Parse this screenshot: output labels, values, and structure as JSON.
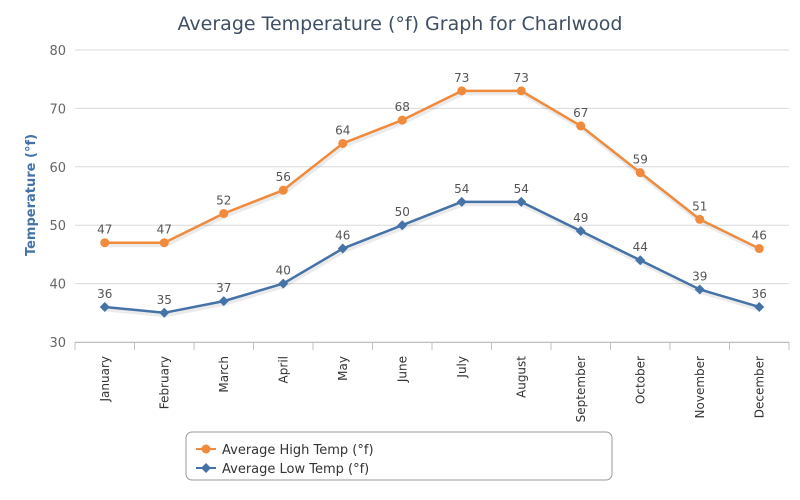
{
  "chart_data": {
    "type": "line",
    "title": "Average Temperature (°f) Graph for Charlwood",
    "xlabel": "",
    "ylabel": "Temperature (°f)",
    "ylim": [
      30,
      80
    ],
    "yticks": [
      30,
      40,
      50,
      60,
      70,
      80
    ],
    "grid": true,
    "legend_position": "bottom-center",
    "categories": [
      "January",
      "February",
      "March",
      "April",
      "May",
      "June",
      "July",
      "August",
      "September",
      "October",
      "November",
      "December"
    ],
    "series": [
      {
        "name": "Average High Temp (°f)",
        "color": "#f08a3c",
        "marker": "circle",
        "values": [
          47,
          47,
          52,
          56,
          64,
          68,
          73,
          73,
          67,
          59,
          51,
          46
        ]
      },
      {
        "name": "Average Low Temp (°f)",
        "color": "#4572a7",
        "marker": "diamond",
        "values": [
          36,
          35,
          37,
          40,
          46,
          50,
          54,
          54,
          49,
          44,
          39,
          36
        ]
      }
    ]
  }
}
